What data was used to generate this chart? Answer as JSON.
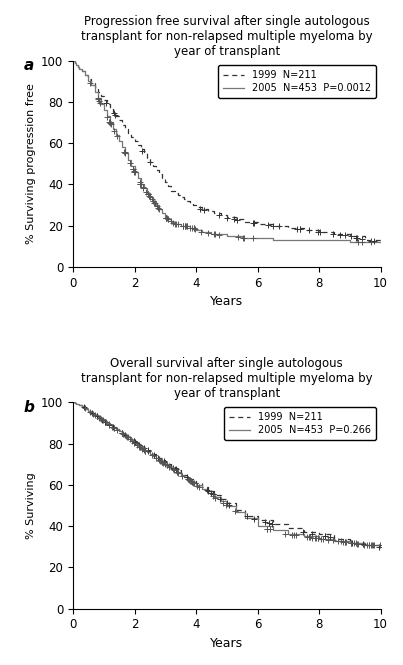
{
  "title_a": "Progression free survival after single autologous\ntransplant for non-relapsed multiple myeloma by\nyear of transplant",
  "title_b": "Overall survival after single autologous\ntransplant for non-relapsed multiple myeloma by\nyear of transplant",
  "ylabel_a": "% Surviving progression free",
  "ylabel_b": "% Surviving",
  "xlabel": "Years",
  "panel_a_label": "a",
  "panel_b_label": "b",
  "legend_a_1999": "1999  N=211",
  "legend_a_2005": "2005  N=453  P=0.0012",
  "legend_b_1999": "1999  N=211",
  "legend_b_2005": "2005  N=453  P=0.266",
  "background": "#ffffff",
  "xlim": [
    0,
    10
  ],
  "ylim": [
    0,
    100
  ],
  "xticks": [
    0,
    2,
    4,
    6,
    8,
    10
  ],
  "yticks": [
    0,
    20,
    40,
    60,
    80,
    100
  ],
  "pfs_1999_x": [
    0,
    0.05,
    0.1,
    0.15,
    0.2,
    0.3,
    0.4,
    0.5,
    0.6,
    0.7,
    0.8,
    0.9,
    1.0,
    1.1,
    1.2,
    1.3,
    1.4,
    1.5,
    1.6,
    1.7,
    1.8,
    1.9,
    2.0,
    2.1,
    2.2,
    2.3,
    2.4,
    2.5,
    2.6,
    2.7,
    2.8,
    2.9,
    3.0,
    3.1,
    3.2,
    3.3,
    3.4,
    3.5,
    3.6,
    3.7,
    3.8,
    3.9,
    4.0,
    4.2,
    4.4,
    4.6,
    4.8,
    5.0,
    5.3,
    5.6,
    6.0,
    6.5,
    7.0,
    7.5,
    8.0,
    8.5,
    9.0,
    9.5,
    10.0
  ],
  "pfs_1999_y": [
    100,
    99,
    98,
    97,
    96,
    95,
    93,
    91,
    89,
    87,
    85,
    83,
    81,
    79,
    77,
    75,
    73,
    71,
    69,
    67,
    65,
    63,
    61,
    59,
    57,
    55,
    53,
    51,
    49,
    47,
    45,
    43,
    41,
    39,
    37,
    36,
    35,
    34,
    33,
    32,
    31,
    30,
    29,
    28,
    27,
    26,
    25,
    24,
    23,
    22,
    21,
    20,
    19,
    18,
    17,
    16,
    15,
    13,
    12
  ],
  "pfs_2005_x": [
    0,
    0.05,
    0.1,
    0.15,
    0.2,
    0.3,
    0.4,
    0.5,
    0.6,
    0.7,
    0.8,
    0.9,
    1.0,
    1.1,
    1.2,
    1.3,
    1.4,
    1.5,
    1.6,
    1.7,
    1.8,
    1.9,
    2.0,
    2.1,
    2.2,
    2.3,
    2.4,
    2.5,
    2.6,
    2.7,
    2.8,
    2.9,
    3.0,
    3.1,
    3.2,
    3.3,
    3.4,
    3.5,
    3.6,
    3.7,
    3.8,
    3.9,
    4.0,
    4.2,
    4.5,
    5.0,
    5.5,
    6.0,
    6.5,
    7.0,
    7.5,
    8.0,
    8.5,
    9.0,
    9.5,
    10.0
  ],
  "pfs_2005_y": [
    100,
    99,
    98,
    97,
    96,
    95,
    93,
    90,
    88,
    85,
    82,
    79,
    76,
    73,
    70,
    67,
    64,
    61,
    58,
    55,
    52,
    49,
    46,
    43,
    40,
    38,
    36,
    34,
    32,
    30,
    28,
    26,
    24,
    23,
    22,
    21,
    21,
    20,
    20,
    20,
    19,
    19,
    18,
    17,
    16,
    15,
    14,
    14,
    13,
    13,
    13,
    13,
    13,
    12,
    12,
    12
  ],
  "os_1999_x": [
    0,
    0.05,
    0.1,
    0.2,
    0.3,
    0.4,
    0.5,
    0.6,
    0.7,
    0.8,
    0.9,
    1.0,
    1.1,
    1.2,
    1.3,
    1.4,
    1.5,
    1.6,
    1.7,
    1.8,
    1.9,
    2.0,
    2.1,
    2.2,
    2.3,
    2.4,
    2.5,
    2.6,
    2.7,
    2.8,
    2.9,
    3.0,
    3.1,
    3.2,
    3.3,
    3.4,
    3.5,
    3.6,
    3.7,
    3.8,
    3.9,
    4.0,
    4.2,
    4.4,
    4.6,
    4.8,
    5.0,
    5.3,
    5.6,
    6.0,
    6.5,
    7.0,
    7.5,
    8.0,
    8.5,
    9.0,
    9.5,
    10.0
  ],
  "os_1999_y": [
    100,
    99.5,
    99,
    98.5,
    98,
    97,
    96,
    95,
    94,
    93,
    92,
    91,
    90,
    89,
    88,
    87,
    86,
    85,
    84,
    83,
    82,
    81,
    80,
    79,
    78,
    77,
    76,
    75,
    74,
    73,
    72,
    71,
    70,
    69,
    68,
    67,
    66,
    65,
    64,
    63,
    62,
    61,
    59,
    57,
    55,
    53,
    51,
    48,
    45,
    43,
    41,
    39,
    37,
    36,
    34,
    32,
    31,
    30
  ],
  "os_2005_x": [
    0,
    0.05,
    0.1,
    0.2,
    0.3,
    0.4,
    0.5,
    0.6,
    0.7,
    0.8,
    0.9,
    1.0,
    1.1,
    1.2,
    1.3,
    1.4,
    1.5,
    1.6,
    1.7,
    1.8,
    1.9,
    2.0,
    2.1,
    2.2,
    2.3,
    2.4,
    2.5,
    2.6,
    2.7,
    2.8,
    2.9,
    3.0,
    3.1,
    3.2,
    3.3,
    3.4,
    3.5,
    3.6,
    3.7,
    3.8,
    3.9,
    4.0,
    4.2,
    4.4,
    4.6,
    4.8,
    5.0,
    5.3,
    5.6,
    6.0,
    6.5,
    7.0,
    7.5,
    8.0,
    8.5,
    9.0,
    9.5,
    10.0
  ],
  "os_2005_y": [
    100,
    99.5,
    99,
    98.5,
    98,
    97,
    96,
    95,
    94,
    93,
    92,
    91,
    90,
    89,
    88,
    87,
    86,
    85,
    84,
    83,
    82,
    80,
    79,
    78,
    77,
    76,
    75,
    74,
    73,
    72,
    71,
    70,
    69,
    68,
    67,
    66,
    65,
    64,
    63,
    62,
    61,
    60,
    58,
    56,
    54,
    52,
    50,
    47,
    44,
    40,
    38,
    36,
    35,
    34,
    33,
    32,
    31,
    31
  ]
}
